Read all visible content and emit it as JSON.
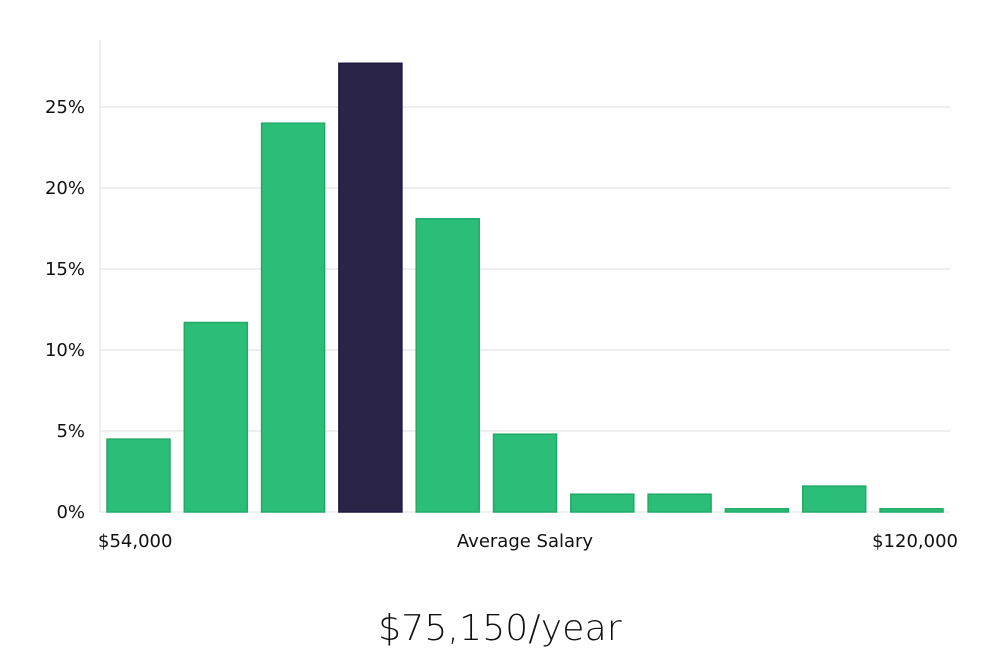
{
  "chart_data": {
    "type": "bar",
    "title": "",
    "xlabel": "Average Salary",
    "ylabel": "",
    "x_start_label": "$54,000",
    "x_end_label": "$120,000",
    "ylim": [
      0,
      28
    ],
    "y_ticks": [
      0,
      5,
      10,
      15,
      20,
      25
    ],
    "y_tick_labels": [
      "0%",
      "5%",
      "10%",
      "15%",
      "20%",
      "25%"
    ],
    "grid": true,
    "bins": 11,
    "values": [
      4.5,
      11.7,
      24.0,
      27.7,
      18.1,
      4.8,
      1.1,
      1.1,
      0.2,
      1.6,
      0.2
    ],
    "highlight_index": 3,
    "colors": {
      "bar": "#2abe78",
      "bar_edge": "#23a868",
      "highlight": "#2a2546",
      "highlight_edge": "#1a1640",
      "grid": "#dddddd",
      "axis": "#e0e0e0"
    }
  },
  "caption": {
    "salary": "$75,150/year"
  }
}
